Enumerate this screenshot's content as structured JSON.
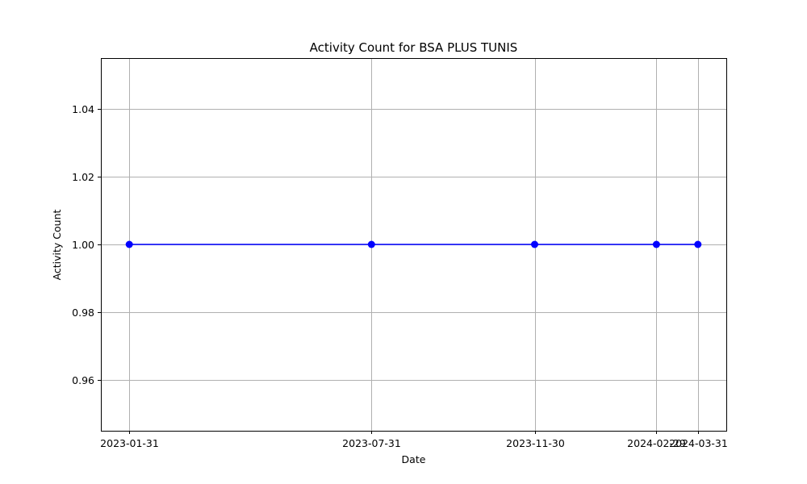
{
  "chart_data": {
    "type": "line",
    "title": "Activity Count for BSA PLUS TUNIS",
    "xlabel": "Date",
    "ylabel": "Activity Count",
    "categories": [
      "2023-01-31",
      "2023-07-31",
      "2023-11-30",
      "2024-02-29",
      "2024-03-31"
    ],
    "series": [
      {
        "values": [
          1,
          1,
          1,
          1,
          1
        ],
        "color": "#0000ff",
        "marker": "circle"
      }
    ],
    "ylim": [
      0.945,
      1.055
    ],
    "yticks": [
      "0.96",
      "0.98",
      "1.00",
      "1.02",
      "1.04"
    ],
    "grid": true,
    "colors": {
      "grid": "#b0b0b0",
      "axes": "#000000",
      "line": "#0000ff"
    }
  }
}
